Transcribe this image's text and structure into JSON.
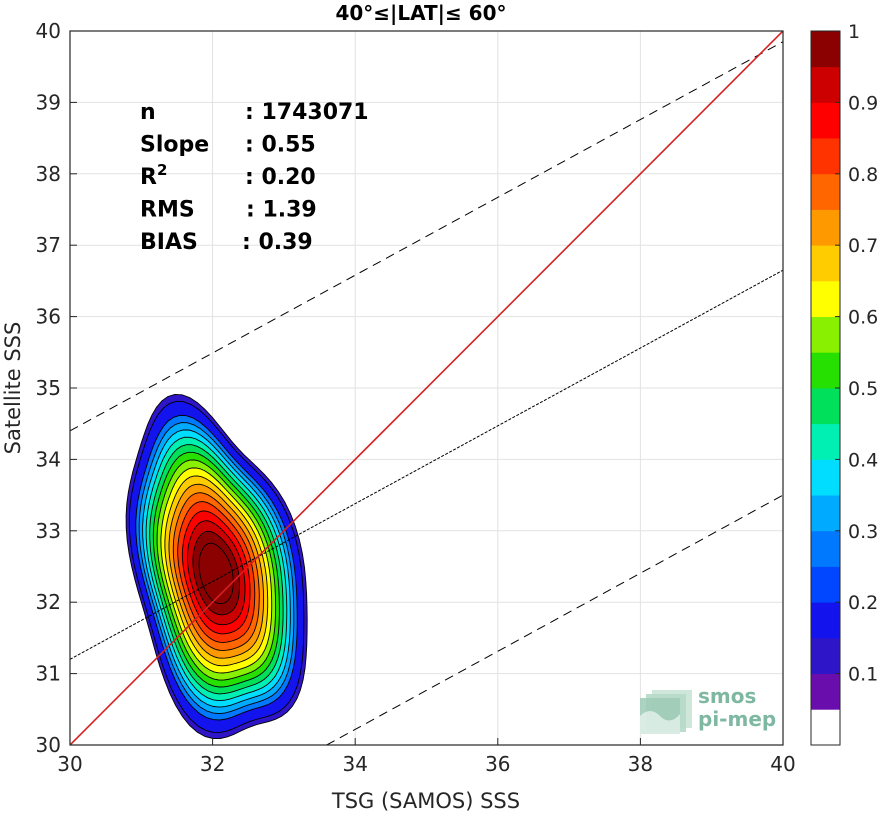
{
  "chart_data": {
    "type": "contour-density",
    "title": "40°≤|LAT|≤ 60°",
    "xlabel": "TSG (SAMOS) SSS",
    "ylabel": "Satellite SSS",
    "xlim": [
      30,
      40
    ],
    "ylim": [
      30,
      40
    ],
    "xticks": [
      30,
      32,
      34,
      36,
      38,
      40
    ],
    "yticks": [
      30,
      31,
      32,
      33,
      34,
      35,
      36,
      37,
      38,
      39,
      40
    ],
    "grid": true,
    "stats": [
      {
        "label": "n",
        "value": ": 1743071"
      },
      {
        "label": "Slope",
        "value": ": 0.55"
      },
      {
        "label": "R",
        "sup": "2",
        "value": ": 0.20"
      },
      {
        "label": "RMS",
        "value": ": 1.39"
      },
      {
        "label": "BIAS",
        "value": ": 0.39"
      }
    ],
    "identity_line": {
      "color": "#d62020",
      "x": [
        30,
        40
      ],
      "y": [
        30,
        40
      ]
    },
    "fit_line": {
      "x": [
        30,
        40
      ],
      "y": [
        31.2,
        36.65
      ]
    },
    "envelope_lines": [
      {
        "x": [
          30,
          40
        ],
        "y": [
          34.4,
          39.85
        ]
      },
      {
        "x": [
          33.6,
          40
        ],
        "y": [
          30,
          33.5
        ]
      }
    ],
    "density_center": {
      "x": 32.05,
      "y": 32.4
    },
    "contour_levels": [
      0.05,
      0.1,
      0.2,
      0.25,
      0.3,
      0.35,
      0.4,
      0.45,
      0.5,
      0.55,
      0.6,
      0.65,
      0.7,
      0.75,
      0.8,
      0.85,
      0.9,
      0.95
    ],
    "colorbar": {
      "ticks": [
        0.1,
        0.2,
        0.3,
        0.4,
        0.5,
        0.6,
        0.7,
        0.8,
        0.9,
        1
      ],
      "tick_labels": [
        "0.1",
        "0.2",
        "0.3",
        "0.4",
        "0.5",
        "0.6",
        "0.7",
        "0.8",
        "0.9",
        "1"
      ],
      "colors": [
        "#ffffff",
        "#6a0dad",
        "#2f15c8",
        "#1313ee",
        "#0047ff",
        "#0079ff",
        "#00aaff",
        "#00ddff",
        "#00f0b4",
        "#00e05a",
        "#25e000",
        "#88f000",
        "#ffff00",
        "#ffcc00",
        "#ff9900",
        "#ff6600",
        "#ff3300",
        "#ff0000",
        "#cc0000",
        "#8b0000"
      ]
    }
  },
  "logo": {
    "line1": "smos",
    "line2": "pi-mep"
  }
}
